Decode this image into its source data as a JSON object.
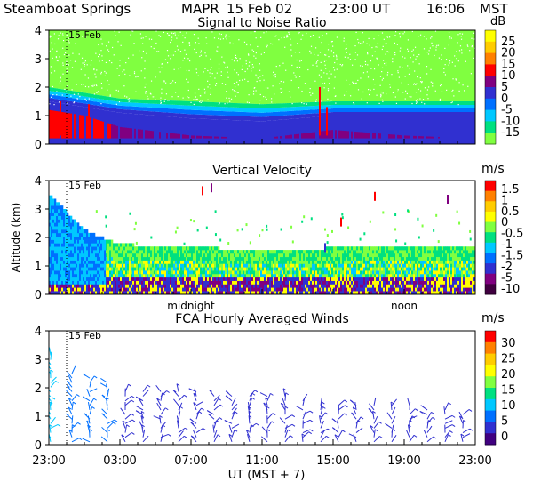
{
  "header": {
    "site": "Steamboat Springs",
    "instrument": "MAPR",
    "date": "15 Feb 02",
    "ut_time": "23:00 UT",
    "local_time": "16:06",
    "tz": "MST"
  },
  "date_marker": "15 Feb",
  "x_axis": {
    "label": "UT  (MST + 7)",
    "ticks": [
      "23:00",
      "03:00",
      "07:00",
      "11:00",
      "15:00",
      "19:00",
      "23:00"
    ],
    "tick_hours": [
      0,
      4,
      8,
      12,
      16,
      20,
      24
    ],
    "midnight_label": "midnight",
    "noon_label": "noon",
    "midnight_hour": 8,
    "noon_hour": 20,
    "date_line_hour": 1.0
  },
  "y_axis_label": "Altitude (km)",
  "chart_data": [
    {
      "type": "heatmap",
      "title": "Signal to Noise Ratio",
      "units": "dB",
      "xlim": [
        0,
        24
      ],
      "ylim": [
        0,
        4
      ],
      "yticks": [
        0,
        1,
        2,
        3,
        4
      ],
      "colorbar_ticks": [
        "25",
        "20",
        "15",
        "10",
        "5",
        "0",
        "-5",
        "-10",
        "-15"
      ],
      "colorbar_colors": [
        "#ffff00",
        "#ffcc00",
        "#ff8000",
        "#ff0000",
        "#800080",
        "#3030d0",
        "#0070ff",
        "#00c8ff",
        "#00e080",
        "#80ff40"
      ],
      "profile": [
        {
          "t": 0,
          "top": 2.0,
          "core": 1.5,
          "strong": 1.2
        },
        {
          "t": 2,
          "top": 1.8,
          "core": 1.3,
          "strong": 1.0
        },
        {
          "t": 4,
          "top": 1.6,
          "core": 1.1,
          "strong": 0.6
        },
        {
          "t": 8,
          "top": 1.5,
          "core": 0.9,
          "strong": 0.3
        },
        {
          "t": 12,
          "top": 1.4,
          "core": 0.8,
          "strong": 0.2
        },
        {
          "t": 16,
          "top": 1.5,
          "core": 1.0,
          "strong": 0.5
        },
        {
          "t": 20,
          "top": 1.5,
          "core": 1.0,
          "strong": 0.3
        },
        {
          "t": 24,
          "top": 1.5,
          "core": 1.0,
          "strong": 0.2
        }
      ]
    },
    {
      "type": "heatmap",
      "title": "Vertical Velocity",
      "units": "m/s",
      "xlim": [
        0,
        24
      ],
      "ylim": [
        0,
        4
      ],
      "yticks": [
        0,
        1,
        2,
        3,
        4
      ],
      "colorbar_ticks": [
        "1.5",
        "1",
        "0.5",
        "0",
        "-0.5",
        "-1",
        "-1.5",
        "-2",
        "-5",
        "-10"
      ],
      "colorbar_colors": [
        "#ff0000",
        "#ff8000",
        "#ffcc00",
        "#ffff00",
        "#80ff40",
        "#00e080",
        "#00c8ff",
        "#0070ff",
        "#3030d0",
        "#800080",
        "#400040"
      ],
      "profile": [
        {
          "t": 0,
          "top": 3.5,
          "core": 2.0,
          "strong": 0.6
        },
        {
          "t": 2,
          "top": 2.2,
          "core": 1.5,
          "strong": 0.5
        },
        {
          "t": 4,
          "top": 1.7,
          "core": 1.2,
          "strong": 0.5
        },
        {
          "t": 12,
          "top": 1.5,
          "core": 1.0,
          "strong": 0.5
        },
        {
          "t": 18,
          "top": 1.6,
          "core": 1.1,
          "strong": 0.5
        },
        {
          "t": 24,
          "top": 1.6,
          "core": 1.1,
          "strong": 0.5
        }
      ]
    },
    {
      "type": "barbs",
      "title": "FCA Hourly Averaged Winds",
      "units": "m/s",
      "xlim": [
        0,
        24
      ],
      "ylim": [
        0,
        4
      ],
      "yticks": [
        0,
        1,
        2,
        3,
        4
      ],
      "colorbar_ticks": [
        "30",
        "25",
        "20",
        "15",
        "10",
        "5",
        "0"
      ],
      "colorbar_colors": [
        "#ff0000",
        "#ff8000",
        "#ffcc00",
        "#ffff00",
        "#80ff40",
        "#00e080",
        "#00c8ff",
        "#0070ff",
        "#3030d0",
        "#400080"
      ],
      "barb_hours": [
        0,
        1,
        2,
        3,
        4,
        5,
        6,
        7,
        8,
        9,
        10,
        11,
        12,
        13,
        14,
        15,
        16,
        17,
        18,
        19,
        20,
        21,
        22,
        23
      ],
      "barb_top_km": [
        3.2,
        2.6,
        2.4,
        2.2,
        2.0,
        2.0,
        1.9,
        1.9,
        1.9,
        1.8,
        1.8,
        1.8,
        1.8,
        1.7,
        1.6,
        1.5,
        1.5,
        1.5,
        1.5,
        1.4,
        1.4,
        1.3,
        1.3,
        1.2
      ],
      "speed_ms": [
        10,
        8,
        6,
        6,
        5,
        5,
        5,
        5,
        4,
        4,
        4,
        4,
        4,
        4,
        4,
        4,
        4,
        4,
        4,
        4,
        4,
        4,
        4,
        4
      ]
    }
  ]
}
